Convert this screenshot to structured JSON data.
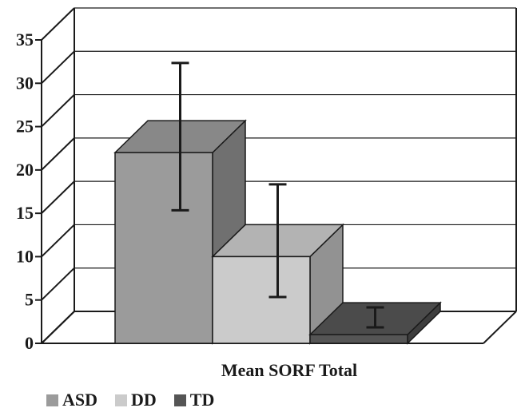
{
  "chart_data": {
    "type": "bar",
    "subtype": "3d-column-with-error-bars",
    "title": "",
    "xlabel": "Mean SORF Total",
    "ylabel": "",
    "ylim": [
      0,
      35
    ],
    "yticks": [
      0,
      5,
      10,
      15,
      20,
      25,
      30,
      35
    ],
    "grid": true,
    "legend_position": "bottom-left",
    "series": [
      {
        "name": "ASD",
        "value": 22.0,
        "error_low": 13.5,
        "error_high": 30.5,
        "color": "#9b9b9b"
      },
      {
        "name": "DD",
        "value": 10.0,
        "error_low": 3.5,
        "error_high": 16.5,
        "color": "#cbcbcb"
      },
      {
        "name": "TD",
        "value": 1.0,
        "error_low": 0.0,
        "error_high": 2.3,
        "color": "#555555"
      }
    ]
  }
}
